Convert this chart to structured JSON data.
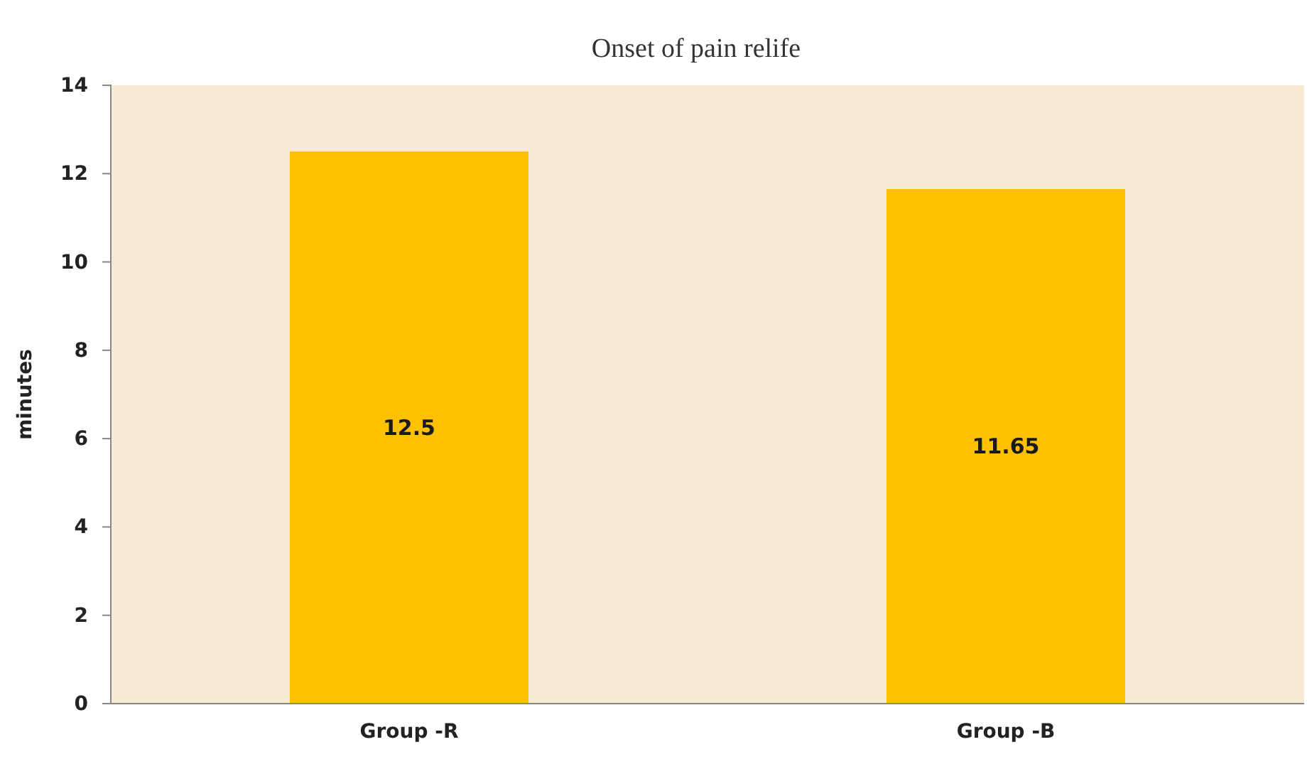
{
  "chart_data": {
    "type": "bar",
    "title": "Onset of pain relife",
    "ylabel": "minutes",
    "categories": [
      "Group -R",
      "Group -B"
    ],
    "values": [
      12.5,
      11.65
    ],
    "color": "#ffc000",
    "ylim": [
      0,
      14
    ],
    "yticks": [
      0,
      2,
      4,
      6,
      8,
      10,
      12,
      14
    ],
    "data_labels": true
  }
}
